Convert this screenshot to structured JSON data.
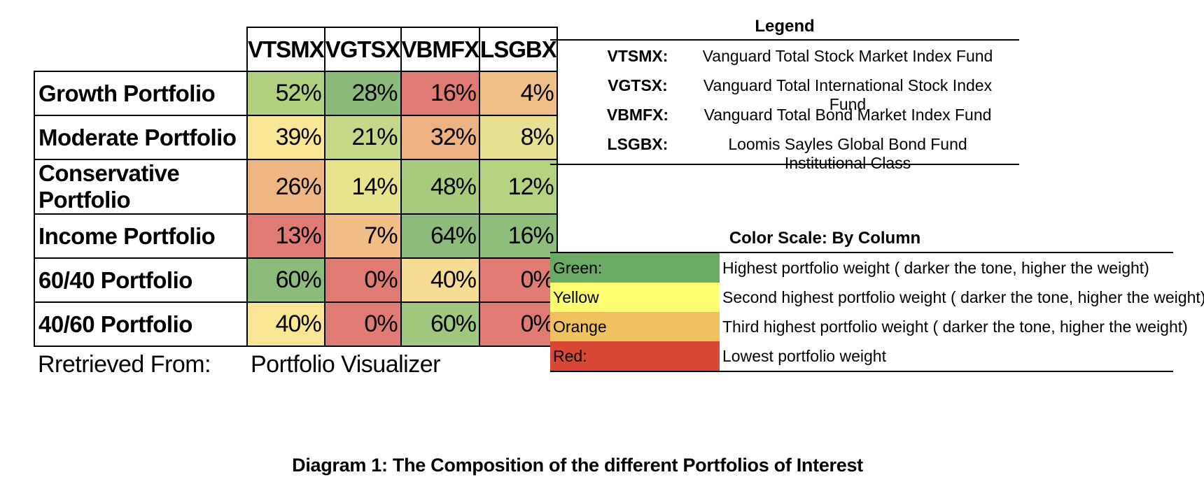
{
  "chart_data": {
    "type": "heatmap",
    "title": "",
    "xlabel": "",
    "ylabel": "",
    "columns": [
      "VTSMX",
      "VGTSX",
      "VBMFX",
      "LSGBX"
    ],
    "rows": [
      {
        "label": "Growth Portfolio",
        "values": [
          52,
          28,
          16,
          4
        ],
        "colors": [
          "#b1d07f",
          "#8bbb7b",
          "#e07b73",
          "#eebf86"
        ]
      },
      {
        "label": "Moderate Portfolio",
        "values": [
          39,
          21,
          32,
          8
        ],
        "colors": [
          "#f8e695",
          "#c4d888",
          "#eeb282",
          "#e6e090"
        ]
      },
      {
        "label": "Conservative Portfolio",
        "values": [
          26,
          14,
          48,
          12
        ],
        "colors": [
          "#edb683",
          "#e8e38d",
          "#a9cb7e",
          "#b5d281"
        ]
      },
      {
        "label": "Income Portfolio",
        "values": [
          13,
          7,
          64,
          16
        ],
        "colors": [
          "#e07b73",
          "#efbd85",
          "#8cbb7b",
          "#8fbe7c"
        ]
      },
      {
        "label": "60/40 Portfolio",
        "values": [
          60,
          0,
          40,
          0
        ],
        "colors": [
          "#8cbb7b",
          "#e07b73",
          "#f8dc93",
          "#e07b73"
        ]
      },
      {
        "label": "40/60 Portfolio",
        "values": [
          40,
          0,
          60,
          0
        ],
        "colors": [
          "#f8e695",
          "#e07b73",
          "#a0c77e",
          "#e07b73"
        ]
      }
    ],
    "value_suffix": "%"
  },
  "source": {
    "label": "Rretrieved From:",
    "value": "Portfolio Visualizer"
  },
  "legend": {
    "title": "Legend",
    "items": [
      {
        "code": "VTSMX:",
        "name": "Vanguard Total Stock Market Index Fund"
      },
      {
        "code": "VGTSX:",
        "name": "Vanguard Total International Stock Index Fund"
      },
      {
        "code": "VBMFX:",
        "name": "Vanguard Total Bond Market Index Fund"
      },
      {
        "code": "LSGBX:",
        "name": "Loomis Sayles Global Bond Fund Institutional Class"
      }
    ]
  },
  "color_scale": {
    "title": "Color Scale: By Column",
    "items": [
      {
        "color_name": "Green:",
        "color": "#6aaa64",
        "description": "Highest portfolio weight ( darker the tone, higher the weight)"
      },
      {
        "color_name": "Yellow",
        "color": "#fdfd72",
        "description": "Second highest portfolio weight ( darker the tone, higher the weight)"
      },
      {
        "color_name": "Orange",
        "color": "#efc15f",
        "description": "Third  highest portfolio weight ( darker the tone, higher the weight)"
      },
      {
        "color_name": "Red:",
        "color": "#d94735",
        "description": "Lowest portfolio weight"
      }
    ]
  },
  "caption": "Diagram 1: The Composition of the different Portfolios of Interest"
}
